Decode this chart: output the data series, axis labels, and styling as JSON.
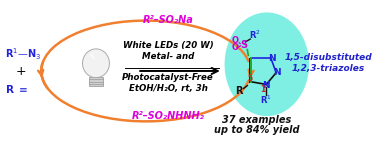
{
  "bg_color": "#ffffff",
  "arrow_color": "#f08030",
  "reagent1": "R²–SO₂Na",
  "reagent2": "White LEDs (20 W)",
  "reagent3": "Metal- and",
  "reagent4": "Photocatalyst-Free",
  "reagent5": "EtOH/H₂O, rt, 3h",
  "reagent6": "R²–SO₂NHNH₂",
  "reagent1_color": "#dd00dd",
  "reagent_text_color": "#000000",
  "reactant_color": "#2222dd",
  "ellipse_facecolor": "#70eedf",
  "product_label1": "1,5-disubstituted",
  "product_label2": "1,2,3-triazoles",
  "product_label_color": "#2222cc",
  "yield_text1": "37 examples",
  "yield_text2": "up to 84% yield",
  "yield_color": "#111111",
  "n_atom_color": "#2222dd",
  "s_atom_color": "#cc00cc",
  "o_atom_color": "#cc00cc",
  "bond_color_black": "#111111",
  "bond_color_green": "#22aa22",
  "num5_color": "#cc2222",
  "num1_color": "#cc2222",
  "r_color": "#111111",
  "r2_color": "#2222dd"
}
